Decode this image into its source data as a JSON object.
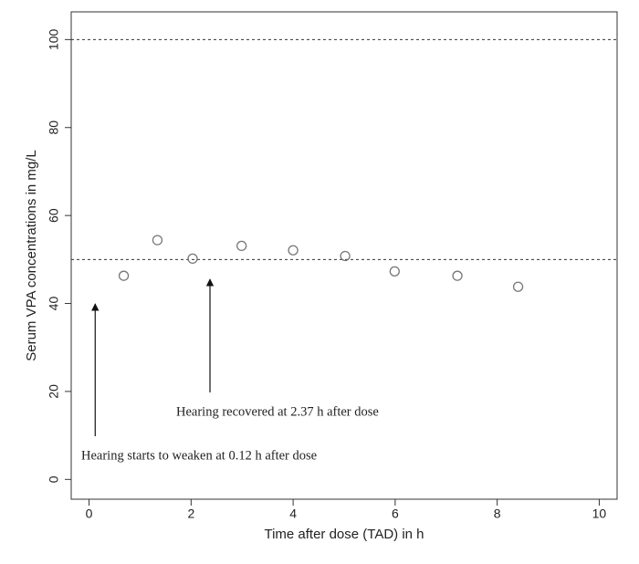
{
  "chart_data": {
    "type": "scatter",
    "x_label": "Time after dose (TAD) in h",
    "y_label": "Serum VPA concentrations in mg/L",
    "x": [
      0.68,
      1.34,
      2.03,
      2.99,
      4.0,
      5.02,
      5.99,
      7.22,
      8.41
    ],
    "values": [
      46.3,
      54.4,
      50.2,
      53.1,
      52.1,
      50.8,
      47.3,
      46.3,
      43.8
    ],
    "color": "#777777",
    "xlim": [
      -0.35,
      10.35
    ],
    "ylim": [
      -4.5,
      106.3
    ],
    "xticks": [
      0,
      2,
      4,
      6,
      8,
      10
    ],
    "yticks": [
      0,
      20,
      40,
      60,
      80,
      100
    ],
    "hlines": [
      50,
      100
    ],
    "annotations": [
      {
        "text": "Hearing starts to weaken at 0.12 h after dose",
        "x": 0.12
      },
      {
        "text": "Hearing recovered at 2.37 h after dose",
        "x": 2.37
      }
    ]
  }
}
